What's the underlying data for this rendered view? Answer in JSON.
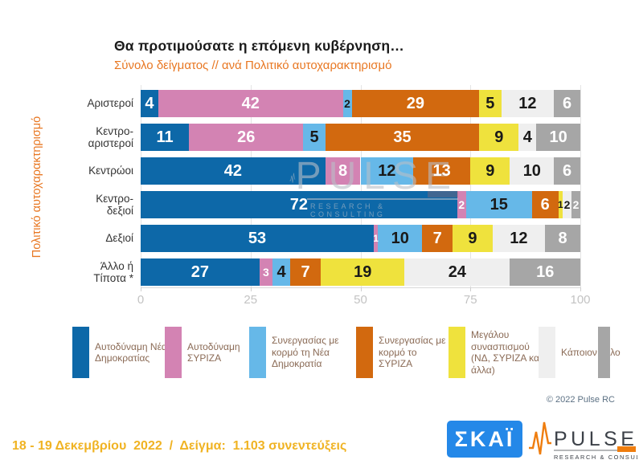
{
  "title": "Θα προτιμούσατε η επόμενη κυβέρνηση…",
  "subtitle": "Σύνολο δείγματος // ανά Πολιτικό αυτοχαρακτηρισμό",
  "y_axis_title": "Πολιτικό αυτοχαρακτηρισμό",
  "chart_data": {
    "type": "bar",
    "orientation": "horizontal",
    "stacked": true,
    "xlim": [
      0,
      100
    ],
    "x_ticks": [
      0,
      25,
      50,
      75,
      100
    ],
    "grid": true,
    "legend_position": "bottom",
    "categories": [
      "Αριστεροί",
      "Κεντρο-\nαριστεροί",
      "Κεντρώοι",
      "Κεντρο-\nδεξιοί",
      "Δεξιοί",
      "Άλλο ή\nΤίποτα *"
    ],
    "series": [
      {
        "name": "Αυτοδύναμη Νέας Δημοκρατίας",
        "color": "#0d68a8",
        "label_color": "#ffffff",
        "values": [
          4,
          11,
          42,
          72,
          53,
          27
        ]
      },
      {
        "name": "Αυτοδύναμη ΣΥΡΙΖΑ",
        "color": "#d383b3",
        "label_color": "#ffffff",
        "values": [
          42,
          26,
          8,
          2,
          1,
          3
        ]
      },
      {
        "name": "Συνεργασίας με κορμό τη Νέα Δημοκρατία",
        "color": "#66b8e8",
        "label_color": "#1a1a1a",
        "values": [
          2,
          5,
          12,
          15,
          10,
          4
        ]
      },
      {
        "name": "Συνεργασίας με κορμό το ΣΥΡΙΖΑ",
        "color": "#d2690f",
        "label_color": "#ffffff",
        "values": [
          29,
          35,
          13,
          6,
          7,
          7
        ]
      },
      {
        "name": "Μεγάλου συνασπισμού (ΝΔ, ΣΥΡΙΖΑ και άλλα)",
        "color": "#efe23d",
        "label_color": "#1a1a1a",
        "values": [
          5,
          9,
          9,
          1,
          9,
          19
        ]
      },
      {
        "name": "Κάποιον άλλο",
        "color": "#efefef",
        "label_color": "#1a1a1a",
        "values": [
          12,
          4,
          10,
          2,
          12,
          24
        ]
      },
      {
        "name": "",
        "color": "#a6a6a6",
        "label_color": "#ffffff",
        "values": [
          6,
          10,
          6,
          2,
          8,
          16
        ]
      }
    ]
  },
  "watermark": {
    "name": "PULSE",
    "tagline": "RESEARCH & CONSULTING"
  },
  "copyright": "© 2022 Pulse RC",
  "footer": {
    "survey_info": "18 - 19 Δεκεμβρίου  2022  /  Δείγμα:  1.103 συνεντεύξεις",
    "skai_logo": "ΣΚΑΪ",
    "pulse_logo_name": "PULSE",
    "pulse_logo_tagline": "RESEARCH & CONSULTING"
  },
  "colors": {
    "accent_orange": "#e87722",
    "footer_gold": "#f0b323",
    "skai_blue": "#2488e8",
    "axis_text": "#c3c3c3",
    "legend_text": "#8a6a55"
  }
}
